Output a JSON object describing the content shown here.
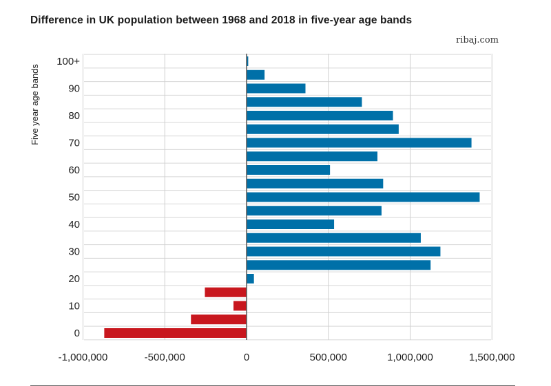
{
  "title": "Difference in UK population between 1968 and 2018 in five-year age bands",
  "source": "ribaj.com",
  "chart_data": {
    "type": "bar",
    "orientation": "horizontal",
    "title": "Difference in UK population between 1968 and 2018 in five-year age bands",
    "xlabel": "",
    "ylabel": "Five year age bands",
    "xlim": [
      -1000000,
      1500000
    ],
    "xticks": [
      -1000000,
      -500000,
      0,
      500000,
      1000000,
      1500000
    ],
    "xtick_labels": [
      "-1,000,000",
      "-500,000",
      "0",
      "500,000",
      "1,000,000",
      "1,500,000"
    ],
    "ytick_labels": [
      "0",
      "10",
      "20",
      "30",
      "40",
      "50",
      "60",
      "70",
      "80",
      "90",
      "100+"
    ],
    "grid": true,
    "colors": {
      "positive": "#0070a8",
      "negative": "#c8171e"
    },
    "bands": [
      "0",
      "5",
      "10",
      "15",
      "20",
      "25",
      "30",
      "35",
      "40",
      "45",
      "50",
      "55",
      "60",
      "65",
      "70",
      "75",
      "80",
      "85",
      "90",
      "95",
      "100+"
    ],
    "values": [
      -870000,
      -340000,
      -80000,
      -255000,
      45000,
      1125000,
      1185000,
      1065000,
      535000,
      825000,
      1425000,
      835000,
      510000,
      800000,
      1375000,
      930000,
      895000,
      705000,
      360000,
      110000,
      10000
    ]
  }
}
